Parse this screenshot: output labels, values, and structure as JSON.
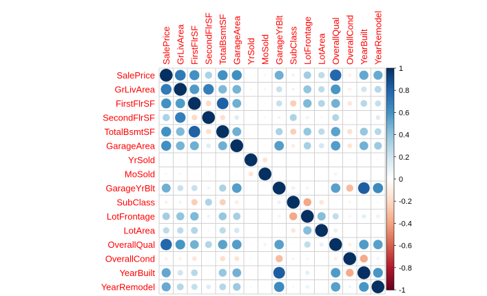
{
  "chart_data": {
    "type": "heatmap",
    "style": "correlation matrix, circles sized and colored by correlation",
    "variables": [
      "SalePrice",
      "GrLivArea",
      "FirstFlrSF",
      "SecondFlrSF",
      "TotalBsmtSF",
      "GarageArea",
      "YrSold",
      "MoSold",
      "GarageYrBlt",
      "SubClass",
      "LotFrontage",
      "LotArea",
      "OverallQual",
      "OverallCond",
      "YearBuilt",
      "YearRemodel"
    ],
    "matrix": [
      [
        1.0,
        0.71,
        0.61,
        0.32,
        0.61,
        0.62,
        -0.03,
        0.05,
        0.49,
        -0.08,
        0.35,
        0.26,
        0.79,
        -0.08,
        0.52,
        0.51
      ],
      [
        0.71,
        1.0,
        0.57,
        0.69,
        0.45,
        0.47,
        -0.04,
        0.05,
        0.23,
        0.07,
        0.4,
        0.26,
        0.59,
        -0.08,
        0.2,
        0.29
      ],
      [
        0.61,
        0.57,
        1.0,
        -0.2,
        0.82,
        0.49,
        -0.01,
        0.03,
        0.23,
        -0.25,
        0.45,
        0.3,
        0.48,
        -0.14,
        0.28,
        0.24
      ],
      [
        0.32,
        0.69,
        -0.2,
        1.0,
        -0.17,
        0.14,
        -0.03,
        0.04,
        0.07,
        0.31,
        0.08,
        0.05,
        0.3,
        0.03,
        0.01,
        0.14
      ],
      [
        0.61,
        0.45,
        0.82,
        -0.17,
        1.0,
        0.49,
        -0.01,
        0.01,
        0.32,
        -0.24,
        0.39,
        0.26,
        0.54,
        -0.17,
        0.39,
        0.29
      ],
      [
        0.62,
        0.47,
        0.49,
        0.14,
        0.49,
        1.0,
        -0.03,
        0.03,
        0.56,
        -0.1,
        0.34,
        0.18,
        0.56,
        -0.15,
        0.48,
        0.37
      ],
      [
        -0.03,
        -0.04,
        -0.01,
        -0.03,
        -0.01,
        -0.03,
        1.0,
        -0.15,
        -0.01,
        -0.02,
        0.01,
        -0.01,
        -0.03,
        0.04,
        -0.01,
        0.04
      ],
      [
        0.05,
        0.05,
        0.03,
        0.04,
        0.01,
        0.03,
        -0.15,
        1.0,
        0.02,
        -0.01,
        0.01,
        0.0,
        0.07,
        -0.0,
        0.01,
        0.02
      ],
      [
        0.49,
        0.23,
        0.23,
        0.07,
        0.32,
        0.56,
        -0.01,
        0.02,
        1.0,
        0.09,
        0.07,
        -0.02,
        0.55,
        -0.32,
        0.83,
        0.64
      ],
      [
        -0.08,
        0.07,
        -0.25,
        0.31,
        -0.24,
        -0.1,
        -0.02,
        -0.01,
        0.09,
        1.0,
        -0.39,
        -0.14,
        0.03,
        -0.06,
        0.03,
        0.04
      ],
      [
        0.35,
        0.4,
        0.45,
        0.08,
        0.39,
        0.34,
        0.01,
        0.01,
        0.07,
        -0.39,
        1.0,
        0.43,
        0.25,
        -0.06,
        0.12,
        0.09
      ],
      [
        0.26,
        0.26,
        0.3,
        0.05,
        0.26,
        0.18,
        -0.01,
        0.0,
        -0.02,
        -0.14,
        0.43,
        1.0,
        0.11,
        -0.01,
        0.01,
        0.01
      ],
      [
        0.79,
        0.59,
        0.48,
        0.3,
        0.54,
        0.56,
        -0.03,
        0.07,
        0.55,
        0.03,
        0.25,
        0.11,
        1.0,
        -0.09,
        0.57,
        0.55
      ],
      [
        -0.08,
        -0.08,
        -0.14,
        0.03,
        -0.17,
        -0.15,
        0.04,
        -0.0,
        -0.32,
        -0.06,
        -0.06,
        -0.01,
        -0.09,
        1.0,
        -0.38,
        0.07
      ],
      [
        0.52,
        0.2,
        0.28,
        0.01,
        0.39,
        0.48,
        -0.01,
        0.01,
        0.83,
        0.03,
        0.12,
        0.01,
        0.57,
        -0.38,
        1.0,
        0.59
      ],
      [
        0.51,
        0.29,
        0.24,
        0.14,
        0.29,
        0.37,
        0.04,
        0.02,
        0.64,
        0.04,
        0.09,
        0.01,
        0.55,
        0.07,
        0.59,
        1.0
      ]
    ],
    "colorbar": {
      "range": [
        -1,
        1
      ],
      "ticks": [
        "-1",
        "-0.8",
        "-0.6",
        "-0.4",
        "-0.2",
        "0",
        "0.2",
        "0.4",
        "0.6",
        "0.8",
        "1"
      ],
      "low_color": "#67001f",
      "mid_color": "#ffffff",
      "high_color": "#053061"
    },
    "label_color": "#ff0000",
    "grid": true
  }
}
